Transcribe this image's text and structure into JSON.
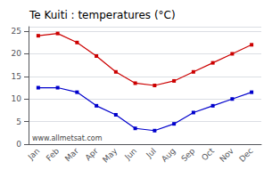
{
  "chart_data": {
    "type": "line",
    "title": "Te Kuiti : temperatures (°C)",
    "categories": [
      "Jan",
      "Feb",
      "Mar",
      "Apr",
      "May",
      "Jun",
      "Jul",
      "Aug",
      "Sep",
      "Oct",
      "Nov",
      "Dec"
    ],
    "series": [
      {
        "color": "#cc0000",
        "marker": "square",
        "values": [
          24.0,
          24.5,
          22.5,
          19.5,
          16.0,
          13.5,
          13.0,
          14.0,
          16.0,
          18.0,
          20.0,
          22.0
        ]
      },
      {
        "color": "#0000cc",
        "marker": "square",
        "values": [
          12.5,
          12.5,
          11.5,
          8.5,
          6.5,
          3.5,
          3.0,
          4.5,
          7.0,
          8.5,
          10.0,
          11.5
        ]
      }
    ],
    "ylim": [
      0,
      26
    ],
    "yticks": [
      0,
      5,
      10,
      15,
      20,
      25
    ],
    "grid": true,
    "annotations": [
      "www.allmetsat.com"
    ]
  }
}
